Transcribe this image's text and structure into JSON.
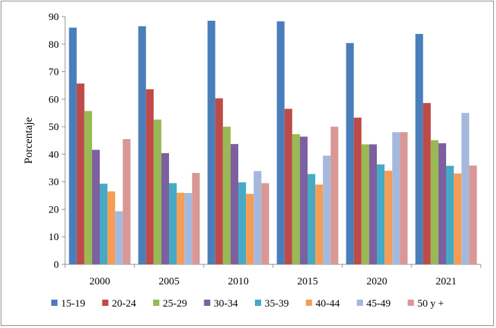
{
  "chart_data": {
    "type": "bar",
    "title": "",
    "xlabel": "",
    "ylabel": "Porcentaje",
    "ylim": [
      0,
      90
    ],
    "yticks": [
      0,
      10,
      20,
      30,
      40,
      50,
      60,
      70,
      80,
      90
    ],
    "grid": false,
    "legend_position": "bottom",
    "categories": [
      "2000",
      "2005",
      "2010",
      "2015",
      "2020",
      "2021"
    ],
    "series": [
      {
        "name": "15-19",
        "color": "#4a7ebb",
        "values": [
          86.0,
          86.5,
          88.5,
          88.3,
          80.4,
          83.7
        ]
      },
      {
        "name": "20-24",
        "color": "#be4b48",
        "values": [
          65.7,
          63.6,
          60.3,
          56.5,
          53.3,
          58.6
        ]
      },
      {
        "name": "25-29",
        "color": "#98b954",
        "values": [
          55.7,
          52.6,
          50.0,
          47.3,
          43.6,
          45.1
        ]
      },
      {
        "name": "30-34",
        "color": "#7d60a0",
        "values": [
          41.6,
          40.4,
          43.7,
          46.4,
          43.6,
          44.0
        ]
      },
      {
        "name": "35-39",
        "color": "#46aac5",
        "values": [
          29.3,
          29.5,
          29.8,
          32.8,
          36.3,
          35.8
        ]
      },
      {
        "name": "40-44",
        "color": "#f59d56",
        "values": [
          26.5,
          26.0,
          25.6,
          29.0,
          34.0,
          33.0
        ]
      },
      {
        "name": "45-49",
        "color": "#a5b9dd",
        "values": [
          19.3,
          25.9,
          33.9,
          39.5,
          48.0,
          55.0
        ]
      },
      {
        "name": "50 y +",
        "color": "#d99795",
        "values": [
          45.5,
          33.2,
          29.5,
          50.0,
          48.0,
          35.9
        ]
      }
    ]
  }
}
